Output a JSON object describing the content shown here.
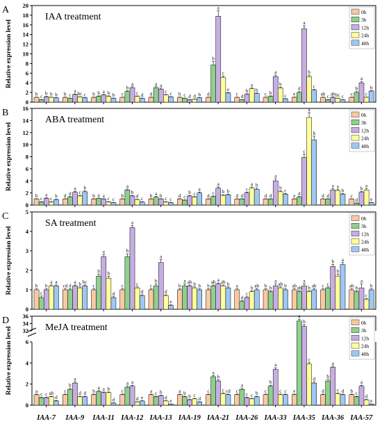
{
  "shared": {
    "ylabel": "Relative expression level",
    "categories": [
      "IAA-7",
      "IAA-9",
      "IAA-11",
      "IAA-12",
      "IAA-13",
      "IAA-19",
      "IAA-21",
      "IAA-26",
      "IAA-33",
      "IAA-35",
      "IAA-36",
      "IAA-57"
    ],
    "legend": [
      "0h",
      "3h",
      "12h",
      "24h",
      "48h"
    ],
    "colors": [
      "#f8c9a2",
      "#8fcf8f",
      "#c6aee2",
      "#ffff9c",
      "#9ec7f4"
    ]
  },
  "chart_data": [
    {
      "type": "bar",
      "panel_letter": "A",
      "title": "IAA treatment",
      "ylim": [
        0,
        20
      ],
      "yticks": [
        0,
        2,
        4,
        6,
        8,
        10,
        12,
        14,
        16,
        18,
        20
      ],
      "values": [
        [
          1.0,
          0.5,
          1.1,
          1.0,
          0.9
        ],
        [
          1.0,
          0.8,
          1.6,
          1.1,
          0.9
        ],
        [
          1.0,
          1.2,
          1.5,
          1.2,
          0.8
        ],
        [
          1.0,
          2.2,
          3.0,
          1.2,
          0.8
        ],
        [
          1.0,
          3.0,
          2.7,
          1.5,
          1.1
        ],
        [
          1.0,
          0.8,
          0.5,
          0.6,
          0.9
        ],
        [
          1.0,
          7.7,
          17.8,
          5.1,
          1.9
        ],
        [
          1.0,
          0.5,
          1.6,
          2.8,
          1.8
        ],
        [
          1.0,
          1.2,
          5.3,
          2.9,
          0.7
        ],
        [
          1.0,
          2.0,
          15.2,
          5.3,
          2.5
        ],
        [
          1.0,
          0.5,
          1.0,
          0.8,
          0.5
        ],
        [
          1.0,
          2.0,
          4.0,
          1.0,
          2.3
        ]
      ],
      "errors": [
        [
          0.05,
          0.05,
          0.1,
          0.05,
          0.05
        ],
        [
          0.05,
          0.05,
          0.1,
          0.05,
          0.05
        ],
        [
          0.05,
          0.1,
          0.1,
          0.1,
          0.05
        ],
        [
          0.05,
          0.15,
          0.2,
          0.1,
          0.05
        ],
        [
          0.05,
          0.2,
          0.2,
          0.1,
          0.05
        ],
        [
          0.05,
          0.05,
          0.05,
          0.05,
          0.05
        ],
        [
          0.05,
          0.7,
          1.1,
          0.3,
          0.1
        ],
        [
          0.05,
          0.05,
          0.15,
          0.15,
          0.1
        ],
        [
          0.05,
          0.1,
          0.3,
          0.2,
          0.05
        ],
        [
          0.05,
          0.2,
          0.6,
          0.3,
          0.15
        ],
        [
          0.05,
          0.05,
          0.1,
          0.05,
          0.05
        ],
        [
          0.05,
          0.2,
          0.3,
          0.05,
          0.1
        ]
      ],
      "letters": [
        [
          "b",
          "c",
          "b",
          "b",
          "b"
        ],
        [
          "b",
          "c",
          "a",
          "bc",
          "c"
        ],
        [
          "b",
          "b",
          "a",
          "b",
          "b"
        ],
        [
          "c",
          "b",
          "a",
          "c",
          "d"
        ],
        [
          "d",
          "a",
          "a",
          "c",
          "c"
        ],
        [
          "b",
          "c",
          "d",
          "d",
          "b"
        ],
        [
          "d",
          "b",
          "a",
          "c",
          "e"
        ],
        [
          "c",
          "d",
          "b",
          "a",
          "b"
        ],
        [
          "c",
          "b",
          "a",
          "b",
          "c"
        ],
        [
          "e",
          "d",
          "a",
          "b",
          "c"
        ],
        [
          "ab",
          "c",
          "ab",
          "bc",
          "c"
        ],
        [
          "c",
          "b",
          "a",
          "c",
          "b"
        ]
      ]
    },
    {
      "type": "bar",
      "panel_letter": "B",
      "title": "ABA treatment",
      "ylim": [
        0,
        16
      ],
      "yticks": [
        0,
        2,
        4,
        6,
        8,
        10,
        12,
        14,
        16
      ],
      "values": [
        [
          1.0,
          0.5,
          1.1,
          0.5,
          0.9
        ],
        [
          1.0,
          1.3,
          2.1,
          1.5,
          2.2
        ],
        [
          1.0,
          1.1,
          1.0,
          0.5,
          0.4
        ],
        [
          1.0,
          2.5,
          1.5,
          0.9,
          0.5
        ],
        [
          1.0,
          1.3,
          1.0,
          0.5,
          0.4
        ],
        [
          1.0,
          0.8,
          1.5,
          1.3,
          2.0
        ],
        [
          1.0,
          1.4,
          2.8,
          1.6,
          1.7
        ],
        [
          1.0,
          1.0,
          2.0,
          2.8,
          2.6
        ],
        [
          1.0,
          1.0,
          4.0,
          2.2,
          1.8
        ],
        [
          1.0,
          1.3,
          7.9,
          14.5,
          10.8
        ],
        [
          1.0,
          1.0,
          2.5,
          2.4,
          1.8
        ],
        [
          1.0,
          0.3,
          2.1,
          2.5,
          0.4
        ]
      ],
      "errors": [
        [
          0.05,
          0.05,
          0.1,
          0.05,
          0.05
        ],
        [
          0.05,
          0.1,
          0.15,
          0.1,
          0.15
        ],
        [
          0.05,
          0.05,
          0.05,
          0.05,
          0.05
        ],
        [
          0.05,
          0.15,
          0.1,
          0.05,
          0.05
        ],
        [
          0.05,
          0.1,
          0.05,
          0.05,
          0.05
        ],
        [
          0.05,
          0.05,
          0.1,
          0.1,
          0.15
        ],
        [
          0.05,
          0.1,
          0.2,
          0.1,
          0.1
        ],
        [
          0.05,
          0.05,
          0.15,
          0.2,
          0.2
        ],
        [
          0.05,
          0.05,
          0.3,
          0.15,
          0.1
        ],
        [
          0.05,
          0.1,
          0.5,
          0.8,
          0.6
        ],
        [
          0.05,
          0.05,
          0.2,
          0.2,
          0.1
        ],
        [
          0.05,
          0.05,
          0.15,
          0.2,
          0.05
        ]
      ],
      "letters": [
        [
          "b",
          "c",
          "a",
          "c",
          "b"
        ],
        [
          "d",
          "d",
          "a",
          "c",
          "b"
        ],
        [
          "b",
          "a",
          "a",
          "c",
          "c"
        ],
        [
          "b",
          "a",
          "b",
          "d",
          "c"
        ],
        [
          "b",
          "a",
          "b",
          "c",
          "c"
        ],
        [
          "d",
          "c",
          "b",
          "c",
          "a"
        ],
        [
          "d",
          "c",
          "a",
          "b",
          "b"
        ],
        [
          "d",
          "d",
          "c",
          "a",
          "b"
        ],
        [
          "d",
          "d",
          "a",
          "b",
          "c"
        ],
        [
          "e",
          "d",
          "c",
          "a",
          "b"
        ],
        [
          "d",
          "d",
          "a",
          "a",
          "b"
        ],
        [
          "c",
          "d",
          "b",
          "a",
          "e"
        ]
      ]
    },
    {
      "type": "bar",
      "panel_letter": "C",
      "title": "SA treatment",
      "ylim": [
        0,
        5
      ],
      "yticks": [
        0,
        1,
        2,
        3,
        4,
        5
      ],
      "values": [
        [
          1.0,
          0.6,
          1.0,
          1.2,
          1.2
        ],
        [
          1.0,
          1.0,
          1.2,
          1.1,
          1.2
        ],
        [
          1.0,
          1.7,
          2.7,
          1.6,
          0.6
        ],
        [
          1.0,
          2.7,
          4.2,
          1.1,
          0.7
        ],
        [
          1.0,
          1.2,
          2.4,
          0.7,
          0.2
        ],
        [
          1.0,
          1.2,
          1.2,
          1.1,
          1.0
        ],
        [
          1.0,
          1.2,
          1.3,
          1.2,
          1.1
        ],
        [
          1.0,
          0.4,
          0.6,
          0.9,
          1.0
        ],
        [
          1.0,
          0.9,
          1.2,
          1.1,
          1.0
        ],
        [
          1.0,
          0.9,
          1.2,
          0.9,
          1.0
        ],
        [
          1.0,
          1.1,
          2.2,
          1.7,
          2.3
        ],
        [
          1.0,
          0.9,
          1.1,
          0.5,
          1.0
        ]
      ],
      "errors": [
        [
          0.05,
          0.08,
          0.05,
          0.05,
          0.05
        ],
        [
          0.05,
          0.05,
          0.05,
          0.05,
          0.05
        ],
        [
          0.05,
          0.1,
          0.1,
          0.1,
          0.05
        ],
        [
          0.05,
          0.15,
          0.1,
          0.05,
          0.05
        ],
        [
          0.05,
          0.1,
          0.15,
          0.05,
          0.03
        ],
        [
          0.05,
          0.1,
          0.05,
          0.05,
          0.05
        ],
        [
          0.05,
          0.05,
          0.05,
          0.05,
          0.05
        ],
        [
          0.05,
          0.05,
          0.05,
          0.05,
          0.05
        ],
        [
          0.05,
          0.05,
          0.1,
          0.05,
          0.05
        ],
        [
          0.05,
          0.05,
          0.1,
          0.05,
          0.05
        ],
        [
          0.05,
          0.05,
          0.1,
          0.1,
          0.1
        ],
        [
          0.05,
          0.05,
          0.2,
          0.05,
          0.05
        ]
      ],
      "letters": [
        [
          "b",
          "c",
          "b",
          "a",
          "a"
        ],
        [
          "cd",
          "d",
          "a",
          "b",
          "bc"
        ],
        [
          "c",
          "b",
          "a",
          "b",
          "d"
        ],
        [
          "c",
          "b",
          "a",
          "c",
          "d"
        ],
        [
          "c",
          "b",
          "a",
          "d",
          "e"
        ],
        [
          "b",
          "a",
          "ab",
          "b",
          "b"
        ],
        [
          "b",
          "ab",
          "a",
          "ab",
          "b"
        ],
        [
          "a",
          "d",
          "c",
          "b",
          "ab"
        ],
        [
          "b",
          "b",
          "a",
          "ab",
          "b"
        ],
        [
          "ab",
          "ab",
          "a",
          "b",
          "ab"
        ],
        [
          "c",
          "c",
          "b",
          "b",
          "a"
        ],
        [
          "ab",
          "b",
          "a",
          "c",
          "b"
        ]
      ]
    },
    {
      "type": "bar",
      "panel_letter": "D",
      "title": "MeJA treatment",
      "y_axis_break": true,
      "ylim_lower": [
        0,
        6
      ],
      "ylim_upper": [
        32,
        36
      ],
      "yticks": [
        0,
        2,
        4,
        6,
        32,
        34,
        36
      ],
      "values": [
        [
          1.0,
          0.7,
          0.7,
          0.8,
          0.4
        ],
        [
          1.0,
          1.5,
          2.1,
          0.8,
          0.8
        ],
        [
          1.0,
          1.3,
          1.2,
          1.2,
          0.2
        ],
        [
          1.0,
          1.7,
          1.8,
          0.3,
          0.4
        ],
        [
          1.0,
          0.8,
          0.9,
          0.4,
          0.1
        ],
        [
          1.0,
          0.8,
          0.5,
          0.6,
          0.3
        ],
        [
          1.0,
          2.7,
          2.3,
          1.1,
          1.0
        ],
        [
          1.0,
          1.5,
          0.7,
          0.6,
          0.8
        ],
        [
          1.0,
          1.8,
          3.4,
          1.0,
          1.0
        ],
        [
          1.0,
          34.7,
          33.2,
          3.9,
          2.1
        ],
        [
          1.0,
          2.3,
          3.6,
          1.1,
          1.0
        ],
        [
          1.0,
          0.8,
          1.8,
          0.5,
          0.1
        ]
      ],
      "errors": [
        [
          0.05,
          0.05,
          0.05,
          0.05,
          0.05
        ],
        [
          0.05,
          0.1,
          0.1,
          0.05,
          0.05
        ],
        [
          0.05,
          0.1,
          0.05,
          0.05,
          0.03
        ],
        [
          0.05,
          0.1,
          0.1,
          0.03,
          0.03
        ],
        [
          0.05,
          0.05,
          0.05,
          0.03,
          0.02
        ],
        [
          0.05,
          0.05,
          0.05,
          0.05,
          0.03
        ],
        [
          0.05,
          0.1,
          0.1,
          0.05,
          0.05
        ],
        [
          0.05,
          0.1,
          0.05,
          0.05,
          0.05
        ],
        [
          0.05,
          0.1,
          0.15,
          0.05,
          0.05
        ],
        [
          0.05,
          0.5,
          0.5,
          0.15,
          0.1
        ],
        [
          0.05,
          0.15,
          0.1,
          0.05,
          0.05
        ],
        [
          0.05,
          0.05,
          0.1,
          0.05,
          0.02
        ]
      ],
      "letters": [
        [
          "a",
          "c",
          "c",
          "ab",
          "d"
        ],
        [
          "c",
          "b",
          "a",
          "d",
          "d"
        ],
        [
          "b",
          "a",
          "a",
          "b",
          "d"
        ],
        [
          "c",
          "a",
          "a",
          "d",
          "e"
        ],
        [
          "a",
          "c",
          "b",
          "d",
          "e"
        ],
        [
          "a",
          "b",
          "b",
          "c",
          "d"
        ],
        [
          "c",
          "a",
          "b",
          "c",
          "cd"
        ],
        [
          "c",
          "a",
          "c",
          "c",
          "b"
        ],
        [
          "c",
          "b",
          "a",
          "c",
          "c"
        ],
        [
          "e",
          "a",
          "b",
          "c",
          "d"
        ],
        [
          "d",
          "b",
          "a",
          "c",
          "d"
        ],
        [
          "b",
          "c",
          "a",
          "d",
          "e"
        ]
      ]
    }
  ]
}
